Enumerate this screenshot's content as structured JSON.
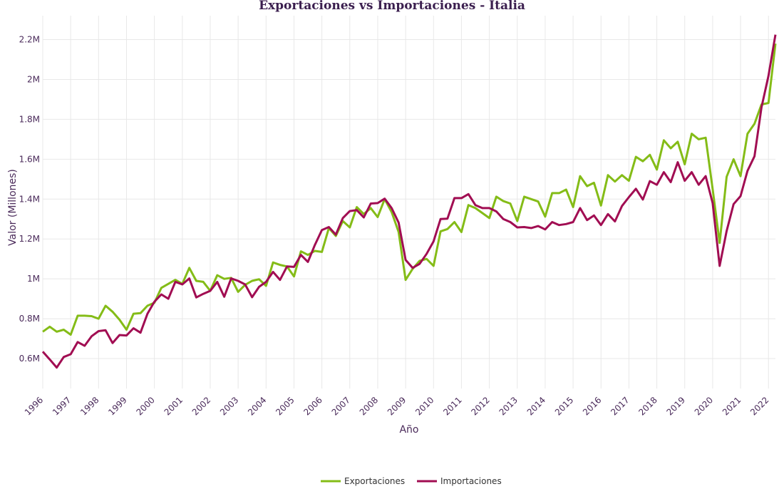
{
  "chart_data": {
    "type": "line",
    "title": "Exportaciones vs Importaciones - Italia",
    "xlabel": "Año",
    "ylabel": "Valor (Millones)",
    "xlim": [
      1996,
      2022.25
    ],
    "ylim": [
      450000,
      2320000
    ],
    "yticks": [
      {
        "value": 600000,
        "label": "0.6M"
      },
      {
        "value": 800000,
        "label": "0.8M"
      },
      {
        "value": 1000000,
        "label": "1M"
      },
      {
        "value": 1200000,
        "label": "1.2M"
      },
      {
        "value": 1400000,
        "label": "1.4M"
      },
      {
        "value": 1600000,
        "label": "1.6M"
      },
      {
        "value": 1800000,
        "label": "1.8M"
      },
      {
        "value": 2000000,
        "label": "2M"
      },
      {
        "value": 2200000,
        "label": "2.2M"
      }
    ],
    "xticks": [
      "1996",
      "1997",
      "1998",
      "1999",
      "2000",
      "2001",
      "2002",
      "2003",
      "2004",
      "2005",
      "2006",
      "2007",
      "2008",
      "2009",
      "2010",
      "2011",
      "2012",
      "2013",
      "2014",
      "2015",
      "2016",
      "2017",
      "2018",
      "2019",
      "2020",
      "2021",
      "2022"
    ],
    "grid": true,
    "legend": "bottom-center",
    "x": [
      1996.0,
      1996.25,
      1996.5,
      1996.75,
      1997.0,
      1997.25,
      1997.5,
      1997.75,
      1998.0,
      1998.25,
      1998.5,
      1998.75,
      1999.0,
      1999.25,
      1999.5,
      1999.75,
      2000.0,
      2000.25,
      2000.5,
      2000.75,
      2001.0,
      2001.25,
      2001.5,
      2001.75,
      2002.0,
      2002.25,
      2002.5,
      2002.75,
      2003.0,
      2003.25,
      2003.5,
      2003.75,
      2004.0,
      2004.25,
      2004.5,
      2004.75,
      2005.0,
      2005.25,
      2005.5,
      2005.75,
      2006.0,
      2006.25,
      2006.5,
      2006.75,
      2007.0,
      2007.25,
      2007.5,
      2007.75,
      2008.0,
      2008.25,
      2008.5,
      2008.75,
      2009.0,
      2009.25,
      2009.5,
      2009.75,
      2010.0,
      2010.25,
      2010.5,
      2010.75,
      2011.0,
      2011.25,
      2011.5,
      2011.75,
      2012.0,
      2012.25,
      2012.5,
      2012.75,
      2013.0,
      2013.25,
      2013.5,
      2013.75,
      2014.0,
      2014.25,
      2014.5,
      2014.75,
      2015.0,
      2015.25,
      2015.5,
      2015.75,
      2016.0,
      2016.25,
      2016.5,
      2016.75,
      2017.0,
      2017.25,
      2017.5,
      2017.75,
      2018.0,
      2018.25,
      2018.5,
      2018.75,
      2019.0,
      2019.25,
      2019.5,
      2019.75,
      2020.0,
      2020.25,
      2020.5,
      2020.75,
      2021.0,
      2021.25,
      2021.5,
      2021.75,
      2022.0,
      2022.25
    ],
    "series": [
      {
        "name": "Exportaciones",
        "color": "#84bc17",
        "values": [
          735000,
          760000,
          735000,
          745000,
          720000,
          815000,
          815000,
          813000,
          800000,
          865000,
          835000,
          795000,
          745000,
          825000,
          828000,
          865000,
          880000,
          955000,
          975000,
          995000,
          975000,
          1055000,
          990000,
          985000,
          940000,
          1018000,
          1000000,
          1005000,
          935000,
          970000,
          990000,
          998000,
          965000,
          1082000,
          1070000,
          1062000,
          1012000,
          1138000,
          1120000,
          1140000,
          1135000,
          1255000,
          1215000,
          1290000,
          1258000,
          1360000,
          1325000,
          1355000,
          1310000,
          1400000,
          1335000,
          1235000,
          995000,
          1050000,
          1090000,
          1100000,
          1065000,
          1238000,
          1250000,
          1285000,
          1235000,
          1370000,
          1355000,
          1330000,
          1305000,
          1412000,
          1390000,
          1378000,
          1290000,
          1412000,
          1400000,
          1388000,
          1312000,
          1430000,
          1430000,
          1448000,
          1360000,
          1515000,
          1465000,
          1482000,
          1368000,
          1520000,
          1488000,
          1520000,
          1492000,
          1612000,
          1590000,
          1622000,
          1548000,
          1695000,
          1655000,
          1688000,
          1575000,
          1728000,
          1700000,
          1708000,
          1450000,
          1180000,
          1512000,
          1600000,
          1515000,
          1728000,
          1778000,
          1875000,
          1882000,
          2180000
        ]
      },
      {
        "name": "Importaciones",
        "color": "#a10d52",
        "values": [
          635000,
          596000,
          555000,
          608000,
          622000,
          683000,
          664000,
          712000,
          738000,
          742000,
          678000,
          718000,
          716000,
          752000,
          730000,
          825000,
          885000,
          922000,
          900000,
          985000,
          972000,
          1002000,
          907000,
          925000,
          940000,
          985000,
          910000,
          1002000,
          990000,
          972000,
          908000,
          960000,
          985000,
          1035000,
          995000,
          1062000,
          1060000,
          1120000,
          1085000,
          1170000,
          1245000,
          1260000,
          1222000,
          1305000,
          1340000,
          1345000,
          1308000,
          1378000,
          1380000,
          1402000,
          1355000,
          1282000,
          1095000,
          1055000,
          1075000,
          1125000,
          1188000,
          1300000,
          1302000,
          1405000,
          1405000,
          1425000,
          1370000,
          1355000,
          1355000,
          1338000,
          1300000,
          1285000,
          1258000,
          1260000,
          1255000,
          1265000,
          1248000,
          1285000,
          1270000,
          1275000,
          1285000,
          1355000,
          1295000,
          1318000,
          1270000,
          1325000,
          1288000,
          1365000,
          1410000,
          1452000,
          1398000,
          1490000,
          1472000,
          1535000,
          1485000,
          1585000,
          1492000,
          1535000,
          1472000,
          1515000,
          1380000,
          1065000,
          1240000,
          1375000,
          1415000,
          1542000,
          1615000,
          1860000,
          2018000,
          2225000
        ]
      }
    ]
  }
}
